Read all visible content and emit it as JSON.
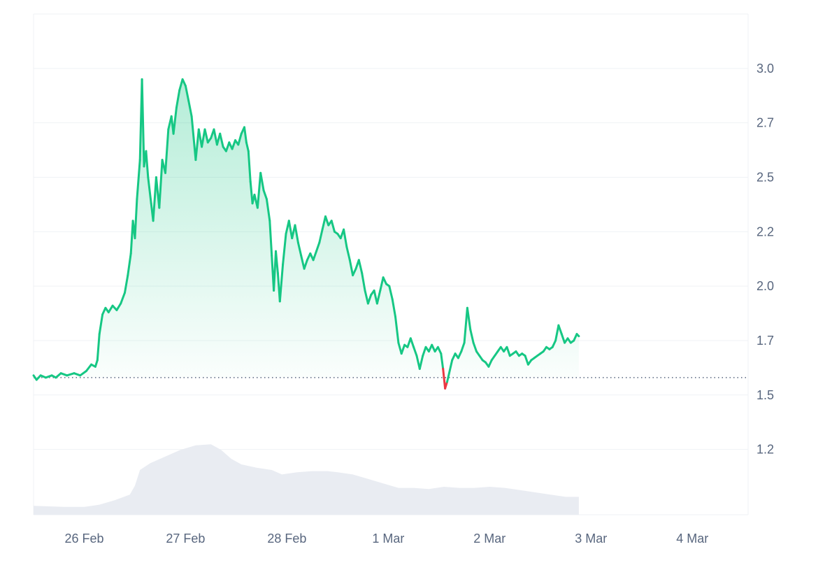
{
  "chart_data": {
    "type": "area",
    "title": "",
    "xlabel": "",
    "ylabel": "",
    "x_ticks": [
      {
        "label": "26 Feb",
        "t": 0.5
      },
      {
        "label": "27 Feb",
        "t": 1.5
      },
      {
        "label": "28 Feb",
        "t": 2.5
      },
      {
        "label": "1 Mar",
        "t": 3.5
      },
      {
        "label": "2 Mar",
        "t": 4.5
      },
      {
        "label": "3 Mar",
        "t": 5.5
      },
      {
        "label": "4 Mar",
        "t": 6.5
      }
    ],
    "y_ticks": [
      "1.2",
      "1.5",
      "1.7",
      "2.0",
      "2.2",
      "2.5",
      "2.7",
      "3.0"
    ],
    "y_tick_values": [
      1.25,
      1.5,
      1.75,
      2.0,
      2.25,
      2.5,
      2.75,
      3.0
    ],
    "xlim": [
      0,
      7.05
    ],
    "ylim": [
      0.95,
      3.25
    ],
    "baseline": 1.58,
    "colors": {
      "up": "#16c784",
      "down": "#ea3943",
      "area_top": "#16c784",
      "volume": "#e9ecf2",
      "grid": "#eff2f5",
      "axis_text": "#58667e",
      "baseline_dots": "#58667e"
    },
    "series": [
      {
        "values": [
          [
            0.0,
            1.59
          ],
          [
            0.03,
            1.57
          ],
          [
            0.07,
            1.59
          ],
          [
            0.12,
            1.58
          ],
          [
            0.18,
            1.59
          ],
          [
            0.22,
            1.58
          ],
          [
            0.27,
            1.6
          ],
          [
            0.33,
            1.59
          ],
          [
            0.4,
            1.6
          ],
          [
            0.46,
            1.59
          ],
          [
            0.52,
            1.61
          ],
          [
            0.57,
            1.64
          ],
          [
            0.61,
            1.63
          ],
          [
            0.63,
            1.66
          ],
          [
            0.65,
            1.78
          ],
          [
            0.68,
            1.87
          ],
          [
            0.71,
            1.9
          ],
          [
            0.74,
            1.88
          ],
          [
            0.78,
            1.91
          ],
          [
            0.82,
            1.89
          ],
          [
            0.86,
            1.92
          ],
          [
            0.9,
            1.97
          ],
          [
            0.93,
            2.05
          ],
          [
            0.96,
            2.15
          ],
          [
            0.98,
            2.3
          ],
          [
            1.0,
            2.22
          ],
          [
            1.02,
            2.4
          ],
          [
            1.05,
            2.58
          ],
          [
            1.07,
            2.95
          ],
          [
            1.09,
            2.55
          ],
          [
            1.11,
            2.62
          ],
          [
            1.13,
            2.5
          ],
          [
            1.16,
            2.38
          ],
          [
            1.18,
            2.3
          ],
          [
            1.21,
            2.5
          ],
          [
            1.24,
            2.36
          ],
          [
            1.27,
            2.58
          ],
          [
            1.3,
            2.52
          ],
          [
            1.33,
            2.72
          ],
          [
            1.36,
            2.78
          ],
          [
            1.38,
            2.7
          ],
          [
            1.41,
            2.82
          ],
          [
            1.44,
            2.9
          ],
          [
            1.47,
            2.95
          ],
          [
            1.5,
            2.92
          ],
          [
            1.53,
            2.85
          ],
          [
            1.56,
            2.78
          ],
          [
            1.58,
            2.68
          ],
          [
            1.6,
            2.58
          ],
          [
            1.63,
            2.72
          ],
          [
            1.66,
            2.64
          ],
          [
            1.69,
            2.72
          ],
          [
            1.72,
            2.66
          ],
          [
            1.75,
            2.68
          ],
          [
            1.78,
            2.72
          ],
          [
            1.81,
            2.65
          ],
          [
            1.84,
            2.7
          ],
          [
            1.87,
            2.64
          ],
          [
            1.9,
            2.62
          ],
          [
            1.93,
            2.66
          ],
          [
            1.96,
            2.63
          ],
          [
            1.99,
            2.67
          ],
          [
            2.02,
            2.65
          ],
          [
            2.05,
            2.7
          ],
          [
            2.08,
            2.73
          ],
          [
            2.1,
            2.66
          ],
          [
            2.12,
            2.62
          ],
          [
            2.14,
            2.48
          ],
          [
            2.16,
            2.38
          ],
          [
            2.18,
            2.42
          ],
          [
            2.21,
            2.36
          ],
          [
            2.24,
            2.52
          ],
          [
            2.27,
            2.44
          ],
          [
            2.3,
            2.4
          ],
          [
            2.33,
            2.3
          ],
          [
            2.35,
            2.14
          ],
          [
            2.37,
            1.98
          ],
          [
            2.39,
            2.16
          ],
          [
            2.41,
            2.06
          ],
          [
            2.43,
            1.93
          ],
          [
            2.46,
            2.1
          ],
          [
            2.49,
            2.24
          ],
          [
            2.52,
            2.3
          ],
          [
            2.55,
            2.22
          ],
          [
            2.58,
            2.28
          ],
          [
            2.61,
            2.2
          ],
          [
            2.64,
            2.14
          ],
          [
            2.67,
            2.08
          ],
          [
            2.7,
            2.12
          ],
          [
            2.73,
            2.15
          ],
          [
            2.76,
            2.12
          ],
          [
            2.79,
            2.16
          ],
          [
            2.82,
            2.2
          ],
          [
            2.85,
            2.26
          ],
          [
            2.88,
            2.32
          ],
          [
            2.91,
            2.28
          ],
          [
            2.94,
            2.3
          ],
          [
            2.97,
            2.25
          ],
          [
            3.0,
            2.24
          ],
          [
            3.03,
            2.22
          ],
          [
            3.06,
            2.26
          ],
          [
            3.09,
            2.18
          ],
          [
            3.12,
            2.12
          ],
          [
            3.15,
            2.05
          ],
          [
            3.18,
            2.08
          ],
          [
            3.21,
            2.12
          ],
          [
            3.24,
            2.06
          ],
          [
            3.27,
            1.98
          ],
          [
            3.3,
            1.92
          ],
          [
            3.33,
            1.96
          ],
          [
            3.36,
            1.98
          ],
          [
            3.39,
            1.92
          ],
          [
            3.42,
            1.98
          ],
          [
            3.45,
            2.04
          ],
          [
            3.48,
            2.01
          ],
          [
            3.51,
            2.0
          ],
          [
            3.54,
            1.94
          ],
          [
            3.57,
            1.86
          ],
          [
            3.6,
            1.74
          ],
          [
            3.63,
            1.69
          ],
          [
            3.66,
            1.73
          ],
          [
            3.69,
            1.72
          ],
          [
            3.72,
            1.76
          ],
          [
            3.75,
            1.72
          ],
          [
            3.78,
            1.68
          ],
          [
            3.81,
            1.62
          ],
          [
            3.84,
            1.68
          ],
          [
            3.87,
            1.72
          ],
          [
            3.9,
            1.7
          ],
          [
            3.93,
            1.73
          ],
          [
            3.96,
            1.7
          ],
          [
            3.99,
            1.72
          ],
          [
            4.02,
            1.69
          ],
          [
            4.04,
            1.62
          ],
          [
            4.06,
            1.53
          ],
          [
            4.08,
            1.56
          ],
          [
            4.1,
            1.6
          ],
          [
            4.13,
            1.66
          ],
          [
            4.16,
            1.69
          ],
          [
            4.19,
            1.67
          ],
          [
            4.22,
            1.7
          ],
          [
            4.25,
            1.74
          ],
          [
            4.28,
            1.9
          ],
          [
            4.31,
            1.8
          ],
          [
            4.34,
            1.74
          ],
          [
            4.37,
            1.7
          ],
          [
            4.4,
            1.68
          ],
          [
            4.43,
            1.66
          ],
          [
            4.46,
            1.65
          ],
          [
            4.49,
            1.63
          ],
          [
            4.52,
            1.66
          ],
          [
            4.55,
            1.68
          ],
          [
            4.58,
            1.7
          ],
          [
            4.61,
            1.72
          ],
          [
            4.64,
            1.7
          ],
          [
            4.67,
            1.72
          ],
          [
            4.7,
            1.68
          ],
          [
            4.73,
            1.69
          ],
          [
            4.76,
            1.7
          ],
          [
            4.79,
            1.68
          ],
          [
            4.82,
            1.69
          ],
          [
            4.85,
            1.68
          ],
          [
            4.88,
            1.64
          ],
          [
            4.91,
            1.66
          ],
          [
            4.94,
            1.67
          ],
          [
            4.97,
            1.68
          ],
          [
            5.0,
            1.69
          ],
          [
            5.03,
            1.7
          ],
          [
            5.06,
            1.72
          ],
          [
            5.09,
            1.71
          ],
          [
            5.12,
            1.72
          ],
          [
            5.15,
            1.75
          ],
          [
            5.18,
            1.82
          ],
          [
            5.21,
            1.78
          ],
          [
            5.24,
            1.74
          ],
          [
            5.27,
            1.76
          ],
          [
            5.3,
            1.74
          ],
          [
            5.33,
            1.75
          ],
          [
            5.36,
            1.78
          ],
          [
            5.38,
            1.77
          ]
        ]
      }
    ],
    "volume_profile": [
      [
        0.0,
        0.08
      ],
      [
        0.3,
        0.07
      ],
      [
        0.5,
        0.07
      ],
      [
        0.65,
        0.09
      ],
      [
        0.8,
        0.13
      ],
      [
        0.95,
        0.18
      ],
      [
        1.0,
        0.26
      ],
      [
        1.05,
        0.4
      ],
      [
        1.15,
        0.46
      ],
      [
        1.3,
        0.52
      ],
      [
        1.45,
        0.58
      ],
      [
        1.6,
        0.62
      ],
      [
        1.75,
        0.63
      ],
      [
        1.85,
        0.58
      ],
      [
        1.95,
        0.5
      ],
      [
        2.05,
        0.45
      ],
      [
        2.2,
        0.42
      ],
      [
        2.35,
        0.4
      ],
      [
        2.45,
        0.36
      ],
      [
        2.6,
        0.38
      ],
      [
        2.75,
        0.39
      ],
      [
        2.9,
        0.39
      ],
      [
        3.0,
        0.38
      ],
      [
        3.15,
        0.36
      ],
      [
        3.3,
        0.32
      ],
      [
        3.45,
        0.28
      ],
      [
        3.6,
        0.24
      ],
      [
        3.75,
        0.24
      ],
      [
        3.9,
        0.23
      ],
      [
        4.05,
        0.25
      ],
      [
        4.2,
        0.24
      ],
      [
        4.35,
        0.24
      ],
      [
        4.5,
        0.25
      ],
      [
        4.65,
        0.24
      ],
      [
        4.8,
        0.22
      ],
      [
        4.95,
        0.2
      ],
      [
        5.1,
        0.18
      ],
      [
        5.25,
        0.16
      ],
      [
        5.38,
        0.16
      ]
    ],
    "volume_x_end": 5.38
  }
}
